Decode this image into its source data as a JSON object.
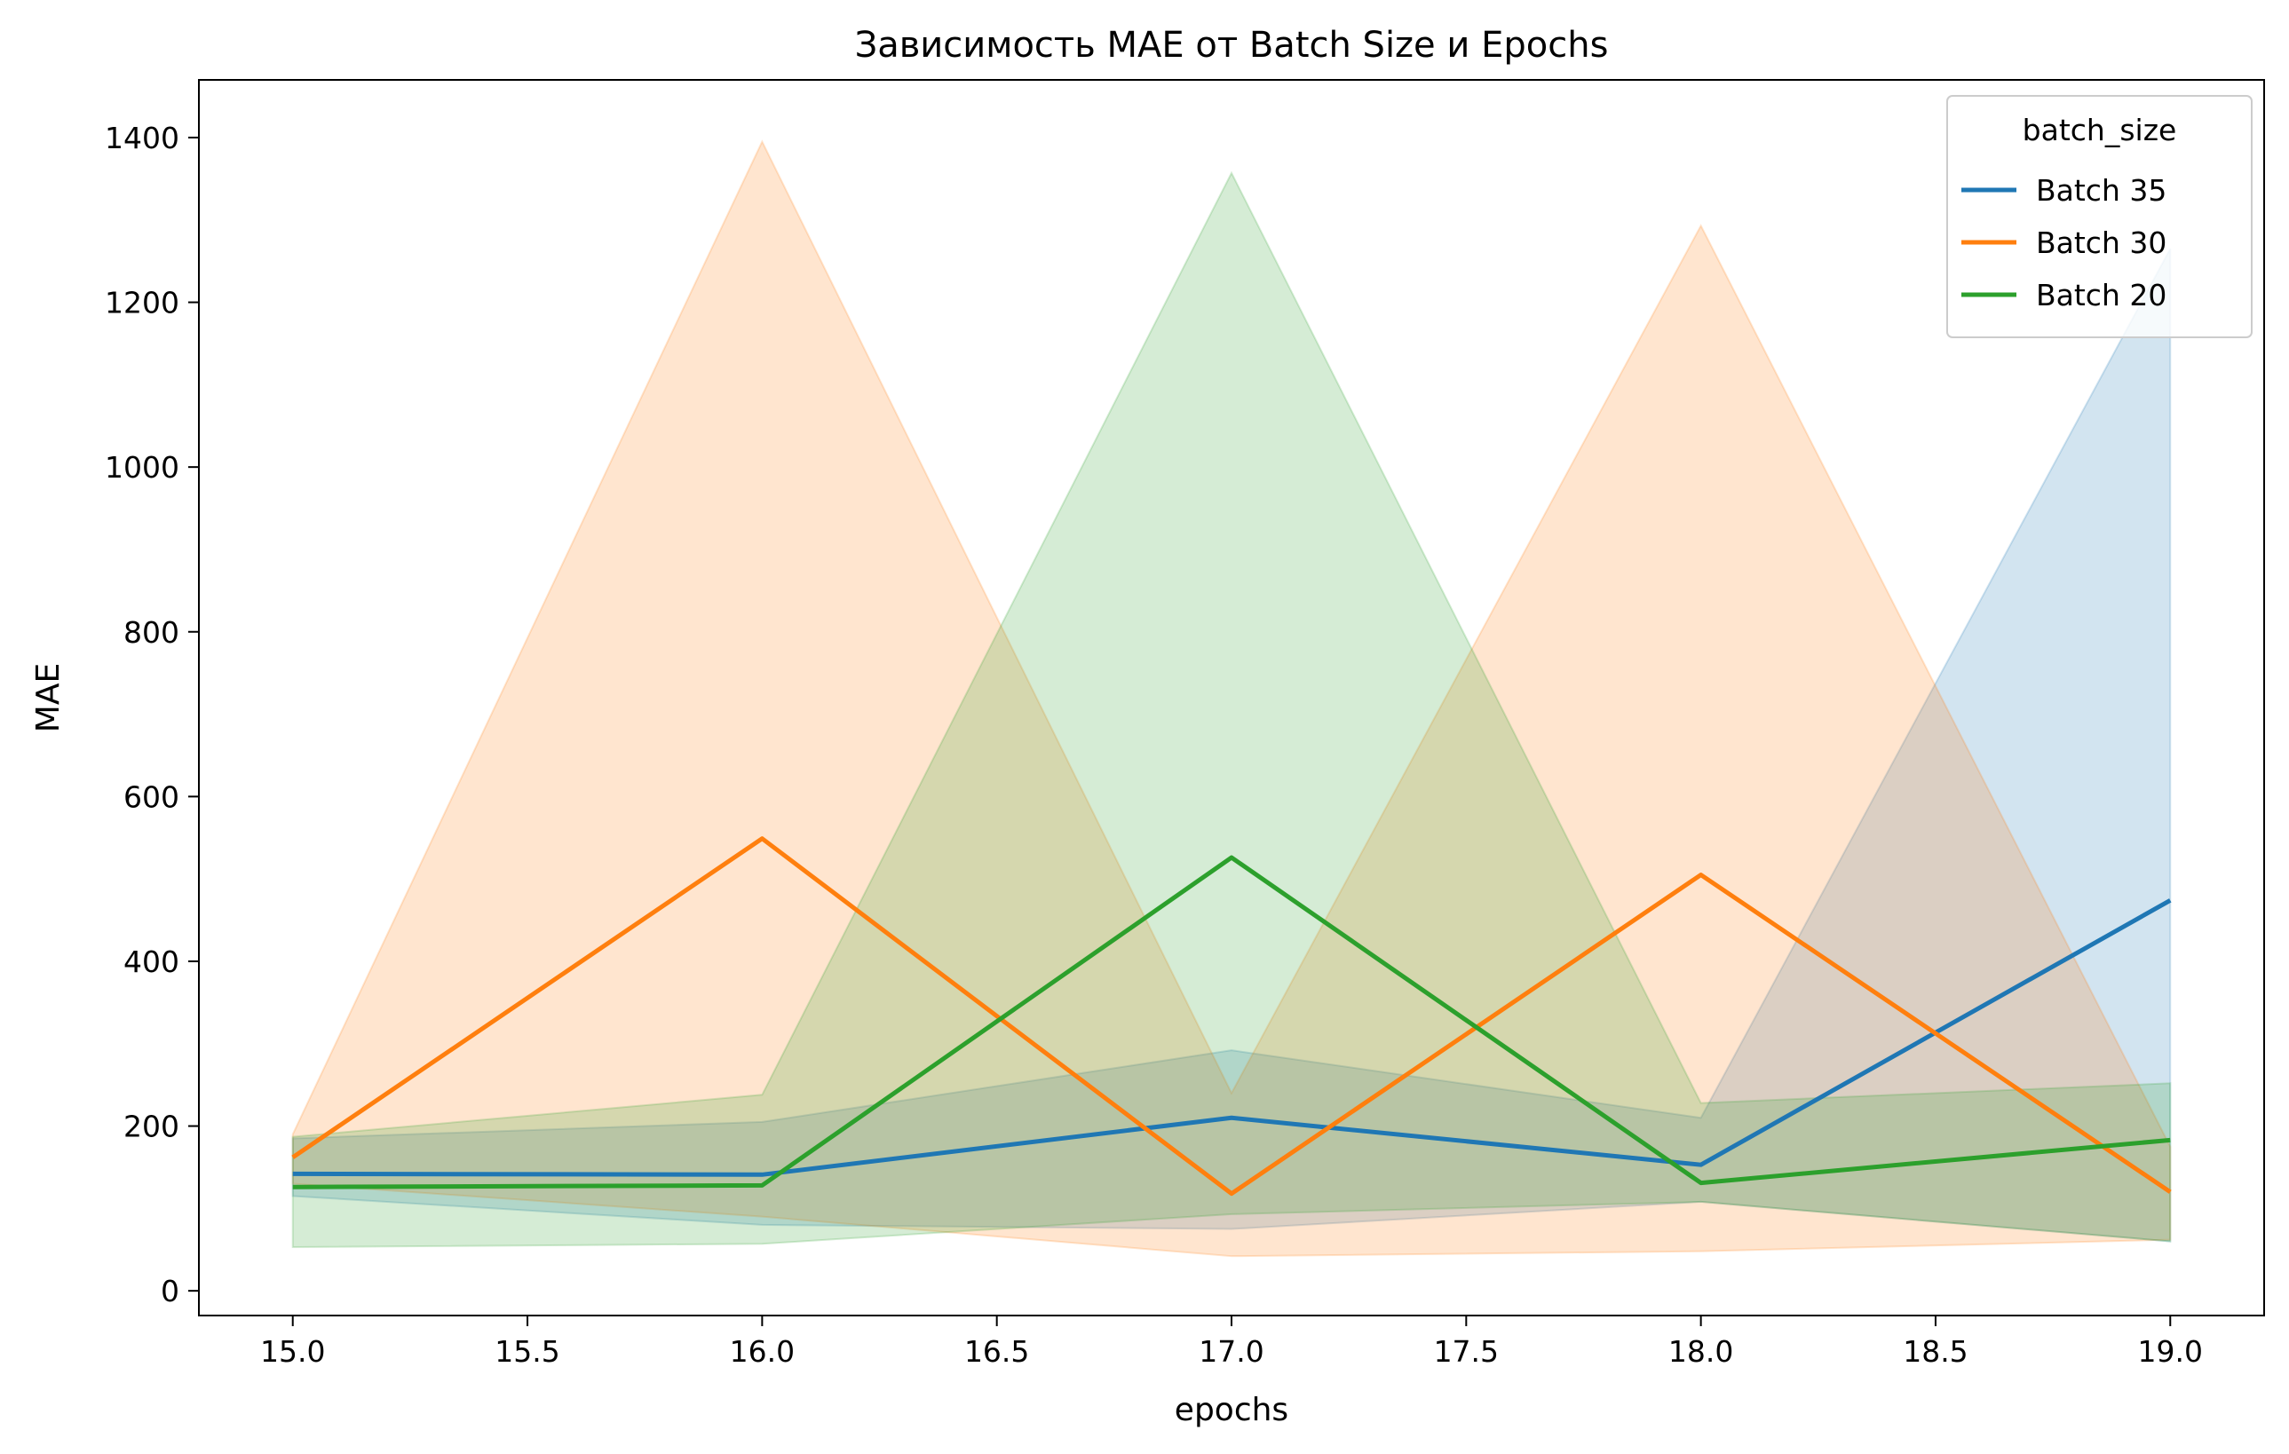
{
  "chart_data": {
    "type": "line",
    "title": "Зависимость MAE от Batch Size и Epochs",
    "xlabel": "epochs",
    "ylabel": "MAE",
    "xlim": [
      14.8,
      19.2
    ],
    "ylim": [
      -30,
      1470
    ],
    "x_ticks": [
      15.0,
      15.5,
      16.0,
      16.5,
      17.0,
      17.5,
      18.0,
      18.5,
      19.0
    ],
    "x_tick_labels": [
      "15.0",
      "15.5",
      "16.0",
      "16.5",
      "17.0",
      "17.5",
      "18.0",
      "18.5",
      "19.0"
    ],
    "y_ticks": [
      0,
      200,
      400,
      600,
      800,
      1000,
      1200,
      1400
    ],
    "y_tick_labels": [
      "0",
      "200",
      "400",
      "600",
      "800",
      "1000",
      "1200",
      "1400"
    ],
    "grid": false,
    "legend": {
      "title": "batch_size",
      "placement": "top-right"
    },
    "x": [
      15,
      16,
      17,
      18,
      19
    ],
    "series": [
      {
        "name": "Batch 35",
        "color": "#1f77b4",
        "values": [
          142,
          141,
          210,
          153,
          474
        ],
        "ci_lower": [
          115,
          80,
          75,
          108,
          60
        ],
        "ci_upper": [
          185,
          205,
          292,
          210,
          1265
        ]
      },
      {
        "name": "Batch 30",
        "color": "#ff7f0e",
        "values": [
          162,
          549,
          118,
          505,
          120
        ],
        "ci_lower": [
          130,
          90,
          42,
          48,
          62
        ],
        "ci_upper": [
          190,
          1395,
          240,
          1293,
          175
        ]
      },
      {
        "name": "Batch 20",
        "color": "#2ca02c",
        "values": [
          126,
          128,
          526,
          131,
          183
        ],
        "ci_lower": [
          53,
          57,
          93,
          108,
          60
        ],
        "ci_upper": [
          187,
          238,
          1357,
          228,
          252
        ]
      }
    ]
  }
}
